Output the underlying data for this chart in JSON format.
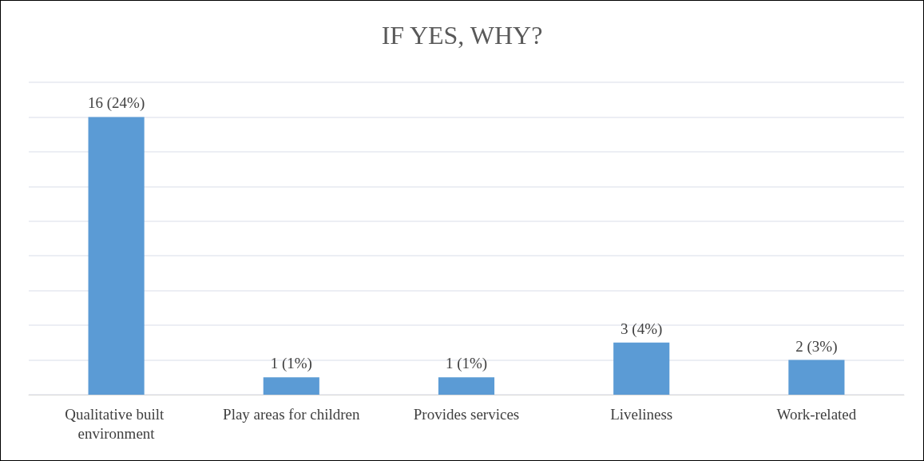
{
  "chart_data": {
    "type": "bar",
    "title": "IF YES, WHY?",
    "categories": [
      "Qualitative built environment",
      "Play areas for children",
      "Provides services",
      "Liveliness",
      "Work-related"
    ],
    "values": [
      16,
      1,
      1,
      3,
      2
    ],
    "value_labels": [
      "16 (24%)",
      "1 (1%)",
      "1 (1%)",
      "3 (4%)",
      "2 (3%)"
    ],
    "color": "#5b9bd5",
    "ylim": [
      0,
      18
    ],
    "yticks": [
      {
        "value": 0,
        "label": null
      },
      {
        "value": 2,
        "label": null
      },
      {
        "value": 4,
        "label": null
      },
      {
        "value": 6,
        "label": null
      },
      {
        "value": 8,
        "label": null
      },
      {
        "value": 10,
        "label": null
      },
      {
        "value": 12,
        "label": null
      },
      {
        "value": 14,
        "label": null
      },
      {
        "value": 16,
        "label": null
      },
      {
        "value": 18,
        "label": null
      }
    ],
    "grid": "y",
    "tick_labels": "x"
  }
}
